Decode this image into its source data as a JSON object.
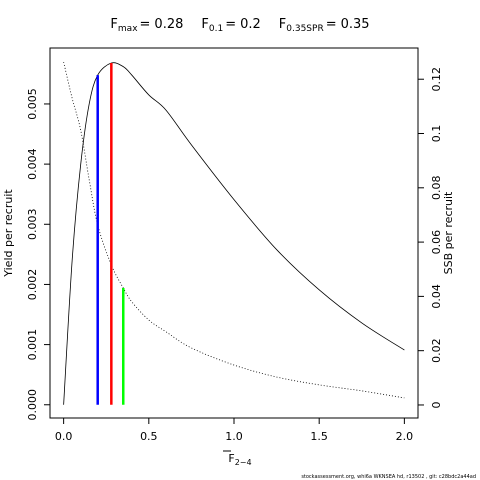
{
  "chart_data": {
    "type": "line",
    "title_parts": [
      {
        "symbol": "F",
        "subscript": "max",
        "relation": "=",
        "value": 0.28,
        "color": "#ff0000",
        "line_top": 0.00568,
        "axis": "y"
      },
      {
        "symbol": "F",
        "subscript": "0.1",
        "relation": "=",
        "value": 0.2,
        "color": "#0000ff",
        "line_top": 0.00548,
        "axis": "y"
      },
      {
        "symbol": "F",
        "subscript": "0.35SPR",
        "relation": "=",
        "value": 0.35,
        "color": "#00ff00",
        "line_top": 0.0431,
        "axis": "y2"
      }
    ],
    "xlabel": {
      "symbol": "F",
      "subscript": "2−4"
    },
    "ylabel": "Yield per recruit",
    "y2label": "SSB per recruit",
    "footer": "stockassessment.org, whi6a WKNSEA hd, r13502 , git: c28bdc2a44ad",
    "x": [
      0,
      0.05,
      0.1,
      0.15,
      0.2,
      0.28,
      0.35,
      0.4,
      0.5,
      0.6,
      0.75,
      1.0,
      1.25,
      1.5,
      1.75,
      2.0
    ],
    "series": [
      {
        "name": "Yield per recruit",
        "color": "#000000",
        "style": "solid",
        "axis": "y",
        "values": [
          0,
          0.0024,
          0.00399,
          0.005,
          0.00548,
          0.00568,
          0.00562,
          0.00548,
          0.00515,
          0.0049,
          0.00432,
          0.00341,
          0.00258,
          0.00191,
          0.00136,
          0.00091
        ]
      },
      {
        "name": "SSB per recruit",
        "color": "#000000",
        "style": "dotted",
        "axis": "y2",
        "values": [
          0.1263,
          0.113,
          0.1013,
          0.083,
          0.0663,
          0.0516,
          0.0431,
          0.038,
          0.0313,
          0.027,
          0.021,
          0.0147,
          0.0103,
          0.0074,
          0.0052,
          0.0026
        ]
      }
    ],
    "xlim": [
      -0.08,
      2.08
    ],
    "xticks": [
      {
        "value": 0,
        "label": "0.0"
      },
      {
        "value": 0.5,
        "label": "0.5"
      },
      {
        "value": 1,
        "label": "1.0"
      },
      {
        "value": 1.5,
        "label": "1.5"
      },
      {
        "value": 2,
        "label": "2.0"
      }
    ],
    "ylim": [
      -0.00022,
      0.00593
    ],
    "yticks": [
      {
        "value": 0,
        "label": "0.000"
      },
      {
        "value": 0.001,
        "label": "0.001"
      },
      {
        "value": 0.002,
        "label": "0.002"
      },
      {
        "value": 0.003,
        "label": "0.003"
      },
      {
        "value": 0.004,
        "label": "0.004"
      },
      {
        "value": 0.005,
        "label": "0.005"
      }
    ],
    "y2lim": [
      -0.0048,
      0.1315
    ],
    "y2ticks": [
      0,
      0.02,
      0.04,
      0.06,
      0.08,
      0.1,
      0.12
    ],
    "grid": false
  }
}
